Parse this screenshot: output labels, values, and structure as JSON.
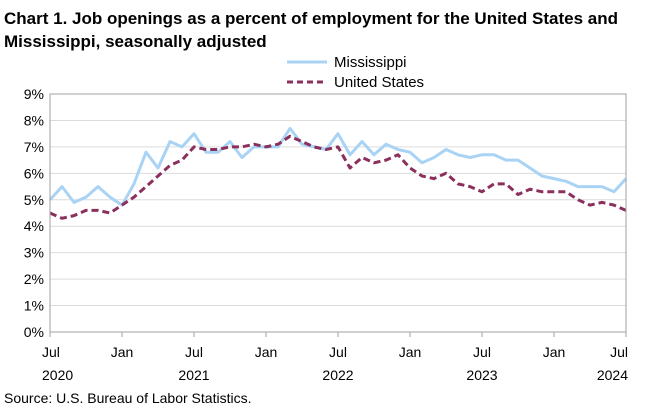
{
  "chart_data": {
    "type": "line",
    "title": "Chart 1. Job openings as a percent of employment for the United States and Mississippi, seasonally adjusted",
    "xlabel": "",
    "ylabel": "",
    "ylim": [
      0,
      9
    ],
    "y_ticks": [
      "0%",
      "1%",
      "2%",
      "3%",
      "4%",
      "5%",
      "6%",
      "7%",
      "8%",
      "9%"
    ],
    "x_ticks": [
      {
        "month": "Jul",
        "year": "2020",
        "index": 0
      },
      {
        "month": "Jan",
        "year": "",
        "index": 6
      },
      {
        "month": "Jul",
        "year": "2021",
        "index": 12
      },
      {
        "month": "Jan",
        "year": "",
        "index": 18
      },
      {
        "month": "Jul",
        "year": "2022",
        "index": 24
      },
      {
        "month": "Jan",
        "year": "",
        "index": 30
      },
      {
        "month": "Jul",
        "year": "2023",
        "index": 36
      },
      {
        "month": "Jan",
        "year": "",
        "index": 42
      },
      {
        "month": "Jul",
        "year": "2024",
        "index": 48
      }
    ],
    "x_count": 49,
    "series": [
      {
        "name": "Mississippi",
        "color": "#a9d3f5",
        "style": "solid",
        "values": [
          5.0,
          5.5,
          4.9,
          5.1,
          5.5,
          5.1,
          4.8,
          5.6,
          6.8,
          6.2,
          7.2,
          7.0,
          7.5,
          6.8,
          6.8,
          7.2,
          6.6,
          7.0,
          7.0,
          7.0,
          7.7,
          7.1,
          7.0,
          6.9,
          7.5,
          6.7,
          7.2,
          6.7,
          7.1,
          6.9,
          6.8,
          6.4,
          6.6,
          6.9,
          6.7,
          6.6,
          6.7,
          6.7,
          6.5,
          6.5,
          6.2,
          5.9,
          5.8,
          5.7,
          5.5,
          5.5,
          5.5,
          5.3,
          5.8
        ]
      },
      {
        "name": "United States",
        "color": "#8b2f5c",
        "style": "dashed",
        "values": [
          4.5,
          4.3,
          4.4,
          4.6,
          4.6,
          4.5,
          4.8,
          5.1,
          5.5,
          5.9,
          6.3,
          6.5,
          7.0,
          6.9,
          6.9,
          7.0,
          7.0,
          7.1,
          7.0,
          7.1,
          7.4,
          7.2,
          7.0,
          6.9,
          7.0,
          6.2,
          6.6,
          6.4,
          6.5,
          6.7,
          6.2,
          5.9,
          5.8,
          6.0,
          5.6,
          5.5,
          5.3,
          5.6,
          5.6,
          5.2,
          5.4,
          5.3,
          5.3,
          5.3,
          5.0,
          4.8,
          4.9,
          4.8,
          4.6
        ]
      }
    ],
    "legend_position": "top-right",
    "grid": true,
    "source": "Source: U.S. Bureau of Labor Statistics."
  }
}
